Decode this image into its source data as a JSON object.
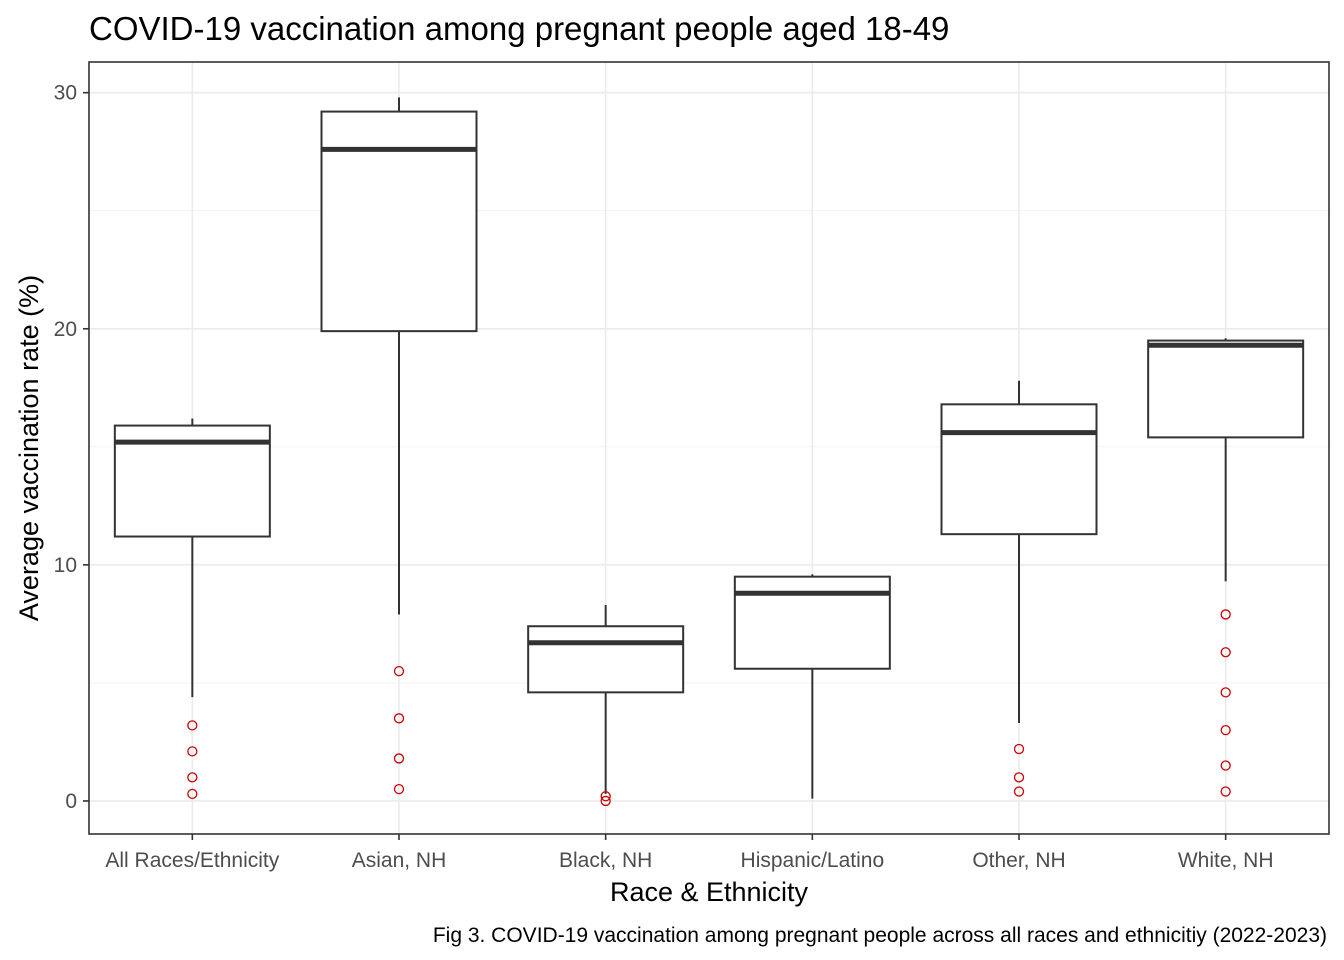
{
  "chart_data": {
    "type": "box",
    "title": "COVID-19 vaccination among pregnant people aged 18-49",
    "xlabel": "Race & Ethnicity",
    "ylabel": "Average vaccination rate (%)",
    "caption": "Fig 3. COVID-19 vaccination among pregnant people across all races and ethnicitiy (2022-2023)",
    "ylim": [
      -1.4,
      31.3
    ],
    "yticks": [
      0,
      10,
      20,
      30
    ],
    "grid": true,
    "outlier_color": "#cc0000",
    "categories": [
      "All Races/Ethnicity",
      "Asian, NH",
      "Black, NH",
      "Hispanic/Latino",
      "Other, NH",
      "White, NH"
    ],
    "boxes": [
      {
        "category": "All Races/Ethnicity",
        "whisker_low": 4.4,
        "q1": 11.2,
        "median": 15.2,
        "q3": 15.9,
        "whisker_high": 16.2,
        "outliers": [
          3.2,
          2.1,
          1.0,
          0.3
        ]
      },
      {
        "category": "Asian, NH",
        "whisker_low": 7.9,
        "q1": 19.9,
        "median": 27.6,
        "q3": 29.2,
        "whisker_high": 29.8,
        "outliers": [
          5.5,
          3.5,
          1.8,
          0.5
        ]
      },
      {
        "category": "Black, NH",
        "whisker_low": 0.3,
        "q1": 4.6,
        "median": 6.7,
        "q3": 7.4,
        "whisker_high": 8.3,
        "outliers": [
          0.2,
          0.0
        ]
      },
      {
        "category": "Hispanic/Latino",
        "whisker_low": 0.1,
        "q1": 5.6,
        "median": 8.8,
        "q3": 9.5,
        "whisker_high": 9.6,
        "outliers": []
      },
      {
        "category": "Other, NH",
        "whisker_low": 3.3,
        "q1": 11.3,
        "median": 15.6,
        "q3": 16.8,
        "whisker_high": 17.8,
        "outliers": [
          2.2,
          1.0,
          0.4
        ]
      },
      {
        "category": "White, NH",
        "whisker_low": 9.3,
        "q1": 15.4,
        "median": 19.3,
        "q3": 19.5,
        "whisker_high": 19.6,
        "outliers": [
          7.9,
          6.3,
          4.6,
          3.0,
          1.5,
          0.4
        ]
      }
    ]
  }
}
